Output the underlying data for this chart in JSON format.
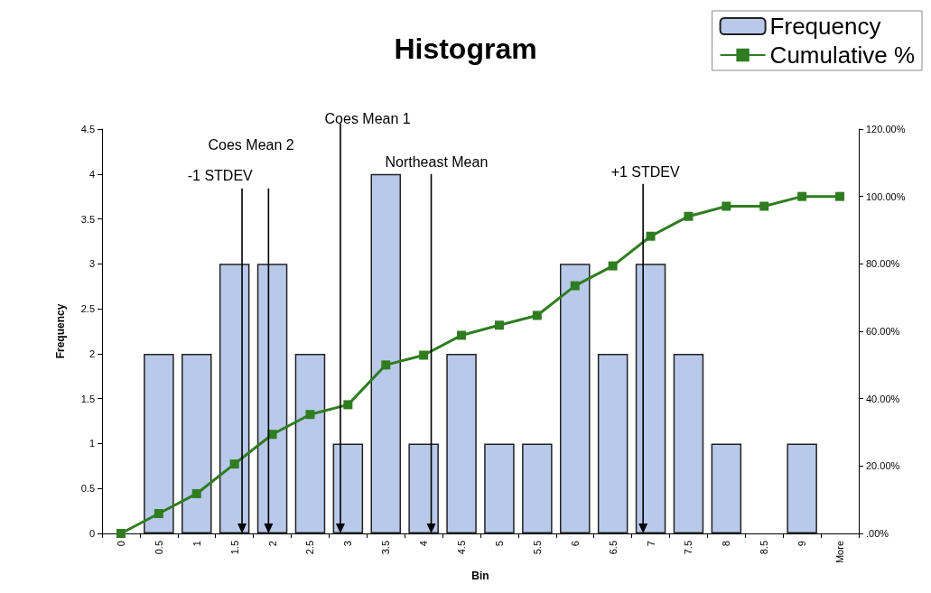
{
  "chart_data": {
    "type": "bar",
    "title": "Histogram",
    "xlabel": "Bin",
    "ylabel": "Frequency",
    "categories": [
      "0",
      "0.5",
      "1",
      "1.5",
      "2",
      "2.5",
      "3",
      "3.5",
      "4",
      "4.5",
      "5",
      "5.5",
      "6",
      "6.5",
      "7",
      "7.5",
      "8",
      "8.5",
      "9",
      "More"
    ],
    "series": [
      {
        "name": "Frequency",
        "color": "#b9c9ea",
        "values": [
          0,
          2,
          2,
          3,
          3,
          2,
          1,
          4,
          1,
          2,
          1,
          1,
          3,
          2,
          3,
          2,
          1,
          0,
          1,
          0
        ]
      },
      {
        "name": "Cumulative %",
        "type": "line",
        "axis": "y2",
        "color": "#2f7d20",
        "marker": "square",
        "values": [
          0,
          5.9,
          11.8,
          20.6,
          29.4,
          35.3,
          38.2,
          50,
          52.9,
          58.8,
          61.8,
          64.7,
          73.5,
          79.4,
          88.2,
          94.1,
          97.1,
          97.1,
          100,
          100
        ]
      }
    ],
    "ylim": [
      0,
      4.5
    ],
    "yticks": [
      0,
      0.5,
      1,
      1.5,
      2,
      2.5,
      3,
      3.5,
      4,
      4.5
    ],
    "y2lim": [
      0,
      120
    ],
    "y2ticks": [
      {
        "value": 0,
        "label": ".00%"
      },
      {
        "value": 20,
        "label": "20.00%"
      },
      {
        "value": 40,
        "label": "40.00%"
      },
      {
        "value": 60,
        "label": "60.00%"
      },
      {
        "value": 80,
        "label": "80.00%"
      },
      {
        "value": 100,
        "label": "100.00%"
      },
      {
        "value": 120,
        "label": "120.00%"
      }
    ],
    "annotations": [
      "-1 STDEV",
      "Coes Mean 2",
      "Coes Mean 1",
      "Northeast Mean",
      "+1 STDEV"
    ],
    "grid": false,
    "legend": "top right"
  }
}
